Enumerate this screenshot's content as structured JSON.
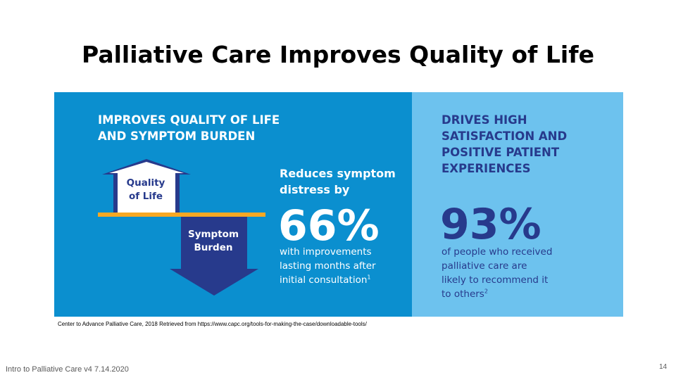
{
  "slide": {
    "title": "Palliative Care Improves Quality of Life",
    "citation": "Center to Advance Palliative Care, 2018 Retrieved from https://www.capc.org/tools-for-making-the-case/downloadable-tools/",
    "footer": "Intro to Palliative Care v4 7.14.2020",
    "page_number": "14"
  },
  "infographic": {
    "left": {
      "heading": "IMPROVES QUALITY OF LIFE\nAND SYMPTOM BURDEN",
      "arrow_up_label": "Quality\nof Life",
      "arrow_down_label": "Symptom\nBurden",
      "stat_intro": "Reduces symptom\ndistress by",
      "stat_value": "66%",
      "stat_desc": "with improvements\nlasting months after\ninitial consultation",
      "footnote": "1"
    },
    "right": {
      "heading": "DRIVES HIGH\nSATISFACTION AND\nPOSITIVE PATIENT\nEXPERIENCES",
      "stat_value": "93%",
      "stat_desc": "of people who received\npalliative care are\nlikely to recommend it\nto others",
      "footnote": "2"
    },
    "colors": {
      "left_panel": "#0b8fcf",
      "right_panel": "#6dc2ee",
      "navy": "#273a8c",
      "divider": "#f7a823"
    }
  }
}
